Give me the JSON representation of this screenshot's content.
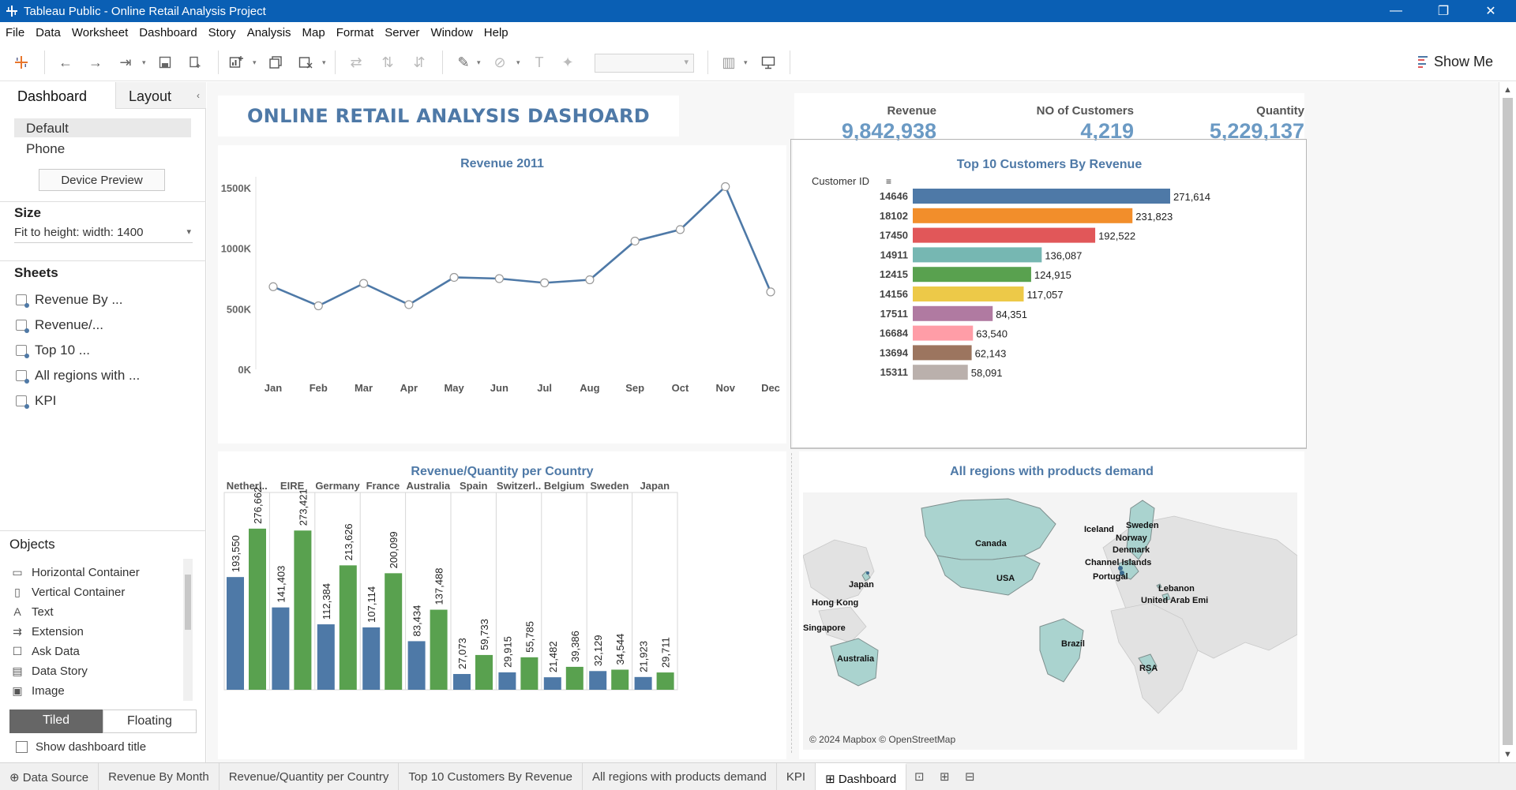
{
  "window": {
    "title": "Tableau Public - Online Retail  Analysis Project",
    "controls": {
      "minimize": "—",
      "restore": "❐",
      "close": "✕"
    }
  },
  "menu": [
    "File",
    "Data",
    "Worksheet",
    "Dashboard",
    "Story",
    "Analysis",
    "Map",
    "Format",
    "Server",
    "Window",
    "Help"
  ],
  "toolbar": {
    "show_me_label": "Show Me",
    "icons": [
      "tableau-logo-icon",
      "undo-icon",
      "redo-icon",
      "replay-icon",
      "save-icon",
      "new-data-source-icon",
      "new-worksheet-icon",
      "duplicate-icon",
      "clear-icon",
      "swap-icon",
      "sort-ascending-icon",
      "sort-descending-icon",
      "highlight-icon",
      "group-icon",
      "labels-icon",
      "pin-icon",
      "fit-icon",
      "presentation-icon"
    ]
  },
  "left_pane": {
    "tabs": {
      "dashboard": "Dashboard",
      "layout": "Layout"
    },
    "device": {
      "default": "Default",
      "phone": "Phone",
      "preview_button": "Device Preview"
    },
    "size": {
      "heading": "Size",
      "value": "Fit to height: width: 1400"
    },
    "sheets": {
      "heading": "Sheets",
      "items": [
        "Revenue By ...",
        "Revenue/...",
        "Top 10 ...",
        "All regions with ...",
        "KPI"
      ]
    },
    "objects": {
      "heading": "Objects",
      "items": [
        {
          "label": "Horizontal Container",
          "icon": "horizontal-container-icon"
        },
        {
          "label": "Vertical Container",
          "icon": "vertical-container-icon"
        },
        {
          "label": "Text",
          "icon": "text-icon"
        },
        {
          "label": "Extension",
          "icon": "extension-icon"
        },
        {
          "label": "Ask Data",
          "icon": "ask-data-icon"
        },
        {
          "label": "Data Story",
          "icon": "data-story-icon"
        },
        {
          "label": "Image",
          "icon": "image-icon"
        }
      ]
    },
    "tiled": "Tiled",
    "floating": "Floating",
    "show_title": "Show dashboard title"
  },
  "dashboard": {
    "title": "ONLINE  RETAIL ANALYSIS DASHOARD",
    "kpis": [
      {
        "label": "Revenue",
        "value": "9,842,938"
      },
      {
        "label": "NO of Customers",
        "value": "4,219"
      },
      {
        "label": "Quantity",
        "value": "5,229,137"
      }
    ],
    "map": {
      "title": "All regions with products demand",
      "labels": [
        "Canada",
        "USA",
        "Brazil",
        "Australia",
        "Japan",
        "Hong Kong",
        "Singapore",
        "Iceland",
        "Sweden",
        "Norway",
        "Denmark",
        "Channel Islands",
        "Portugal",
        "Lebanon",
        "United Arab Emi",
        "RSA"
      ],
      "credit": "© 2024 Mapbox © OpenStreetMap"
    }
  },
  "chart_data": [
    {
      "type": "line",
      "title": "Revenue 2011",
      "categories": [
        "Jan",
        "Feb",
        "Mar",
        "Apr",
        "May",
        "Jun",
        "Jul",
        "Aug",
        "Sep",
        "Oct",
        "Nov",
        "Dec"
      ],
      "values": [
        683000,
        525000,
        710000,
        535000,
        760000,
        750000,
        715000,
        740000,
        1060000,
        1155000,
        1510000,
        640000
      ],
      "y_ticks": [
        "0K",
        "500K",
        "1000K",
        "1500K"
      ],
      "ylim": [
        0,
        1500000
      ],
      "color": "#4e79a7"
    },
    {
      "type": "bar",
      "title": "Top 10 Customers By Revenue",
      "axis_label": "Customer ID",
      "categories": [
        "14646",
        "18102",
        "17450",
        "14911",
        "12415",
        "14156",
        "17511",
        "16684",
        "13694",
        "15311"
      ],
      "values": [
        271614,
        231823,
        192522,
        136087,
        124915,
        117057,
        84351,
        63540,
        62143,
        58091
      ],
      "labels": [
        "271,614",
        "231,823",
        "192,522",
        "136,087",
        "124,915",
        "117,057",
        "84,351",
        "63,540",
        "62,143",
        "58,091"
      ],
      "colors": [
        "#4e79a7",
        "#f28e2b",
        "#e15759",
        "#76b7b2",
        "#59a14f",
        "#edc948",
        "#b07aa1",
        "#ff9da7",
        "#9c755f",
        "#bab0ac"
      ]
    },
    {
      "type": "bar",
      "title": "Revenue/Quantity per Country",
      "categories": [
        "Netherl..",
        "EIRE",
        "Germany",
        "France",
        "Australia",
        "Spain",
        "Switzerl..",
        "Belgium",
        "Sweden",
        "Japan"
      ],
      "series": [
        {
          "values": [
            193550,
            141403,
            112384,
            107114,
            83434,
            27073,
            29915,
            21482,
            32129,
            21923
          ],
          "labels": [
            "193,550",
            "141,403",
            "112,384",
            "107,114",
            "83,434",
            "27,073",
            "29,915",
            "21,482",
            "32,129",
            "21,923"
          ],
          "color": "#4e79a7"
        },
        {
          "values": [
            276662,
            273421,
            213626,
            200099,
            137488,
            59733,
            55785,
            39386,
            34544,
            29711
          ],
          "labels": [
            "276,662",
            "273,421",
            "213,626",
            "200,099",
            "137,488",
            "59,733",
            "55,785",
            "39,386",
            "34,544",
            "29,711"
          ],
          "color": "#59a14f"
        }
      ],
      "ylim": [
        0,
        290000
      ]
    }
  ],
  "bottom_tabs": {
    "data_source": "Data Source",
    "sheets": [
      "Revenue By Month",
      "Revenue/Quantity per Country",
      "Top 10 Customers By Revenue",
      "All regions with products demand",
      "KPI"
    ],
    "active": "Dashboard"
  }
}
